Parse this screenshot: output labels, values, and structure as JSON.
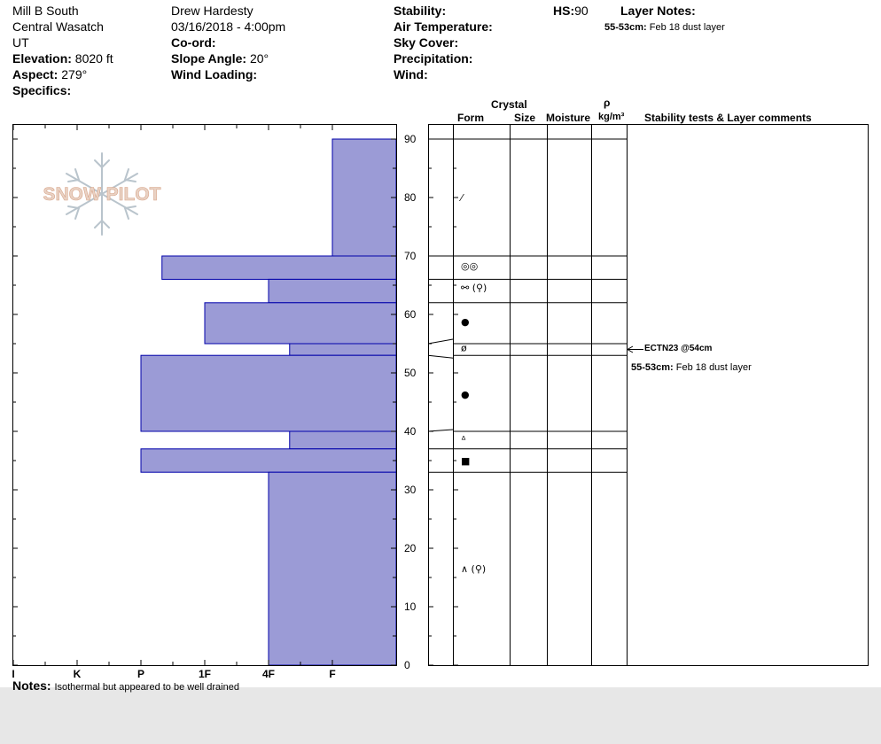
{
  "header": {
    "location": "Mill B South",
    "range": "Central Wasatch",
    "state": "UT",
    "elevation_label": "Elevation:",
    "elevation_value": "8020 ft",
    "aspect_label": "Aspect:",
    "aspect_value": "279°",
    "specifics_label": "Specifics:",
    "observer": "Drew Hardesty",
    "datetime": "03/16/2018 - 4:00pm",
    "coord_label": "Co-ord:",
    "slope_label": "Slope Angle:",
    "slope_value": "20°",
    "wind_loading_label": "Wind Loading:",
    "stability_label": "Stability:",
    "air_temp_label": "Air Temperature:",
    "sky_cover_label": "Sky Cover:",
    "precip_label": "Precipitation:",
    "wind_label": "Wind:",
    "hs_label": "HS:",
    "hs_value": "90",
    "layer_notes_label": "Layer Notes:",
    "layer_note_range": "55-53cm:",
    "layer_note_text": "Feb 18 dust layer"
  },
  "logo": {
    "text": "SNOW PILOT"
  },
  "columns": {
    "crystal": "Crystal",
    "form": "Form",
    "size": "Size",
    "moisture": "Moisture",
    "rho": "ρ",
    "density_unit": "kg/m³",
    "stability": "Stability tests & Layer comments"
  },
  "comments": {
    "test_result": "ECTN23 @54cm",
    "layer_range": "55-53cm:",
    "layer_text": "Feb 18 dust layer"
  },
  "notes": {
    "label": "Notes:",
    "text": "Isothermal but appeared to be well drained"
  },
  "colors": {
    "hardness_fill": "#9b9bd6",
    "hardness_stroke": "#0000aa"
  },
  "chart_data": {
    "type": "bar",
    "orientation": "horizontal",
    "x_categories": [
      "I",
      "K",
      "P",
      "1F",
      "4F",
      "F"
    ],
    "x_values": [
      6,
      5,
      4,
      3,
      2,
      1
    ],
    "ylim": [
      0,
      90
    ],
    "y_ticks": [
      0,
      10,
      20,
      30,
      40,
      50,
      60,
      70,
      80,
      90
    ],
    "layers": [
      {
        "top": 90,
        "bottom": 70,
        "hardness": 1
      },
      {
        "top": 70,
        "bottom": 66,
        "hardness": 3.67
      },
      {
        "top": 66,
        "bottom": 62,
        "hardness": 2
      },
      {
        "top": 62,
        "bottom": 55,
        "hardness": 3
      },
      {
        "top": 55,
        "bottom": 53,
        "hardness": 1.67
      },
      {
        "top": 53,
        "bottom": 40,
        "hardness": 4
      },
      {
        "top": 40,
        "bottom": 37,
        "hardness": 1.67
      },
      {
        "top": 37,
        "bottom": 33,
        "hardness": 4
      },
      {
        "top": 33,
        "bottom": 0,
        "hardness": 2
      }
    ],
    "grain_layers": [
      {
        "top": 90,
        "bottom": 70,
        "form": "⁄",
        "y": 80
      },
      {
        "top": 70,
        "bottom": 66,
        "form": "◎◎",
        "y": 68.3
      },
      {
        "top": 66,
        "bottom": 62,
        "form": "⚯ (⚲)",
        "y": 64.6
      },
      {
        "top": 62,
        "bottom": 55,
        "form": "●",
        "y": 58.8
      },
      {
        "top": 55,
        "bottom": 53,
        "form": "ø",
        "y": 54.3
      },
      {
        "top": 53,
        "bottom": 40,
        "form": "●",
        "y": 46.4
      },
      {
        "top": 40,
        "bottom": 37,
        "form": "ᐞ",
        "y": 38.6
      },
      {
        "top": 37,
        "bottom": 33,
        "form": "■",
        "y": 35
      },
      {
        "top": 33,
        "bottom": 0,
        "form": "∧ (⚲)",
        "y": 16.5
      }
    ],
    "test_depth": 54
  }
}
